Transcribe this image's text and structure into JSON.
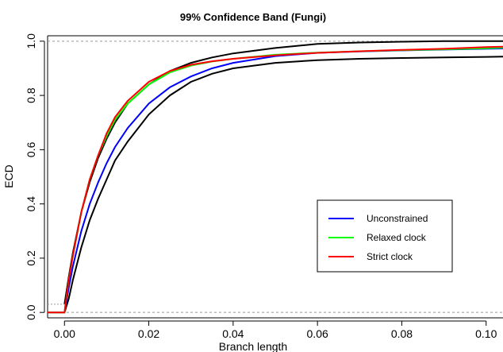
{
  "chart_data": {
    "type": "line",
    "title": "99% Confidence Band (Fungi)",
    "xlabel": "Branch length",
    "ylabel": "ECD",
    "xlim": [
      -0.004,
      0.104
    ],
    "ylim": [
      -0.02,
      1.02
    ],
    "x_ticks": [
      "0.00",
      "0.02",
      "0.04",
      "0.06",
      "0.08",
      "0.10"
    ],
    "y_ticks": [
      "0.0",
      "0.2",
      "0.4",
      "0.6",
      "0.8",
      "1.0"
    ],
    "reference_lines": [
      0.0,
      1.0
    ],
    "grid": false,
    "legend_position": "center-right",
    "series": [
      {
        "name": "Unconstrained",
        "color": "#0000ff",
        "x": [
          -0.004,
          0.0,
          0.001,
          0.002,
          0.004,
          0.006,
          0.008,
          0.01,
          0.012,
          0.015,
          0.02,
          0.025,
          0.03,
          0.035,
          0.04,
          0.05,
          0.06,
          0.07,
          0.08,
          0.09,
          0.1,
          0.104
        ],
        "y": [
          0.0,
          0.0,
          0.09,
          0.17,
          0.3,
          0.4,
          0.48,
          0.55,
          0.61,
          0.68,
          0.77,
          0.83,
          0.87,
          0.9,
          0.92,
          0.945,
          0.957,
          0.962,
          0.966,
          0.969,
          0.972,
          0.973
        ]
      },
      {
        "name": "Relaxed clock",
        "color": "#00ff00",
        "x": [
          -0.004,
          0.0,
          0.001,
          0.002,
          0.004,
          0.006,
          0.008,
          0.01,
          0.012,
          0.015,
          0.02,
          0.025,
          0.03,
          0.035,
          0.04,
          0.05,
          0.06,
          0.07,
          0.08,
          0.09,
          0.1,
          0.104
        ],
        "y": [
          0.0,
          0.0,
          0.12,
          0.21,
          0.37,
          0.49,
          0.58,
          0.65,
          0.71,
          0.77,
          0.84,
          0.885,
          0.91,
          0.925,
          0.935,
          0.95,
          0.958,
          0.963,
          0.967,
          0.97,
          0.974,
          0.976
        ]
      },
      {
        "name": "Strict clock",
        "color": "#ff0000",
        "x": [
          -0.004,
          0.0,
          0.001,
          0.002,
          0.004,
          0.006,
          0.008,
          0.01,
          0.012,
          0.015,
          0.02,
          0.025,
          0.03,
          0.035,
          0.04,
          0.05,
          0.06,
          0.07,
          0.08,
          0.09,
          0.1,
          0.104
        ],
        "y": [
          0.0,
          0.0,
          0.12,
          0.21,
          0.37,
          0.49,
          0.58,
          0.66,
          0.72,
          0.78,
          0.85,
          0.89,
          0.913,
          0.926,
          0.935,
          0.948,
          0.957,
          0.963,
          0.968,
          0.972,
          0.978,
          0.98
        ]
      }
    ],
    "confidence_band": {
      "color": "#000000",
      "upper": {
        "x": [
          0.0,
          0.001,
          0.002,
          0.004,
          0.006,
          0.008,
          0.01,
          0.012,
          0.015,
          0.02,
          0.025,
          0.03,
          0.035,
          0.04,
          0.05,
          0.06,
          0.07,
          0.08,
          0.09,
          0.1,
          0.104
        ],
        "y": [
          0.03,
          0.13,
          0.22,
          0.37,
          0.48,
          0.57,
          0.64,
          0.7,
          0.77,
          0.84,
          0.89,
          0.92,
          0.94,
          0.955,
          0.975,
          0.99,
          0.995,
          0.998,
          1.0,
          1.0,
          1.0
        ]
      },
      "lower": {
        "x": [
          0.0,
          0.001,
          0.002,
          0.004,
          0.006,
          0.008,
          0.01,
          0.012,
          0.015,
          0.02,
          0.025,
          0.03,
          0.035,
          0.04,
          0.05,
          0.06,
          0.07,
          0.08,
          0.09,
          0.1,
          0.104
        ],
        "y": [
          0.0,
          0.05,
          0.12,
          0.24,
          0.34,
          0.42,
          0.49,
          0.56,
          0.63,
          0.73,
          0.8,
          0.85,
          0.88,
          0.9,
          0.92,
          0.93,
          0.935,
          0.938,
          0.94,
          0.942,
          0.943
        ]
      }
    }
  }
}
